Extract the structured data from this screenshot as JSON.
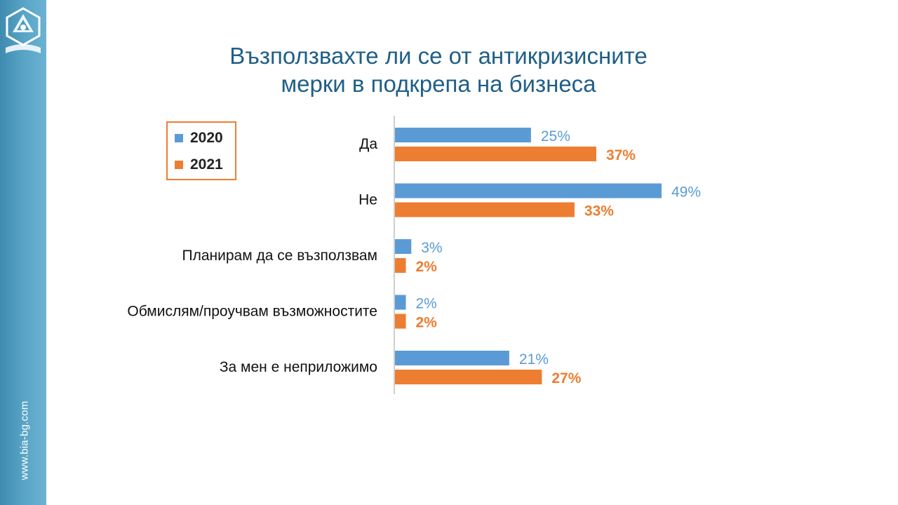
{
  "slide": {
    "title_line1": "Възползвахте ли се от антикризисните",
    "title_line2": "мерки в подкрепа на бизнеса",
    "site_url": "www.bia-bg.com"
  },
  "colors": {
    "series_2020": "#5b9bd5",
    "series_2021": "#ed7d31",
    "title": "#1f5f87",
    "sidebar": "#4a9cc2"
  },
  "legend": {
    "items": [
      {
        "label": "2020",
        "color": "#5b9bd5"
      },
      {
        "label": "2021",
        "color": "#ed7d31"
      }
    ]
  },
  "chart_data": {
    "type": "bar",
    "orientation": "horizontal",
    "categories": [
      "Да",
      "Не",
      "Планирам да се възползвам",
      "Обмислям/проучвам възможностите",
      "За мен е неприложимо"
    ],
    "series": [
      {
        "name": "2020",
        "values": [
          25,
          49,
          3,
          2,
          21
        ],
        "labels": [
          "25%",
          "49%",
          "3%",
          "2%",
          "21%"
        ]
      },
      {
        "name": "2021",
        "values": [
          37,
          33,
          2,
          2,
          27
        ],
        "labels": [
          "37%",
          "33%",
          "2%",
          "2%",
          "27%"
        ]
      }
    ],
    "xlim": [
      0,
      49
    ],
    "grid": false,
    "legend_position": "top-left"
  }
}
